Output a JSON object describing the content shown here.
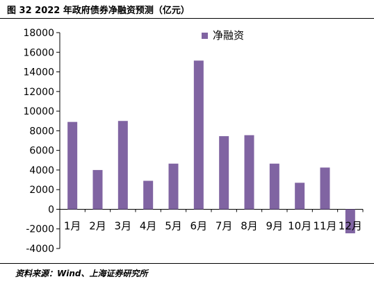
{
  "figure": {
    "title": "图 32 2022 年政府债券净融资预测（亿元）",
    "source": "资料来源：Wind、上海证券研究所"
  },
  "colors": {
    "bar": "#8064A2",
    "axis": "#000000"
  },
  "chart_data": {
    "type": "bar",
    "categories": [
      "1月",
      "2月",
      "3月",
      "4月",
      "5月",
      "6月",
      "7月",
      "8月",
      "9月",
      "10月",
      "11月",
      "12月"
    ],
    "series": [
      {
        "name": "净融资",
        "values": [
          8900,
          4000,
          9000,
          2900,
          4650,
          15150,
          7450,
          7550,
          4650,
          2700,
          4250,
          -2450
        ]
      }
    ],
    "ylim": [
      -4000,
      18000
    ],
    "yticks": [
      -4000,
      -2000,
      0,
      2000,
      4000,
      6000,
      8000,
      10000,
      12000,
      14000,
      16000,
      18000
    ],
    "grid": false,
    "legend_position": "top-center"
  }
}
